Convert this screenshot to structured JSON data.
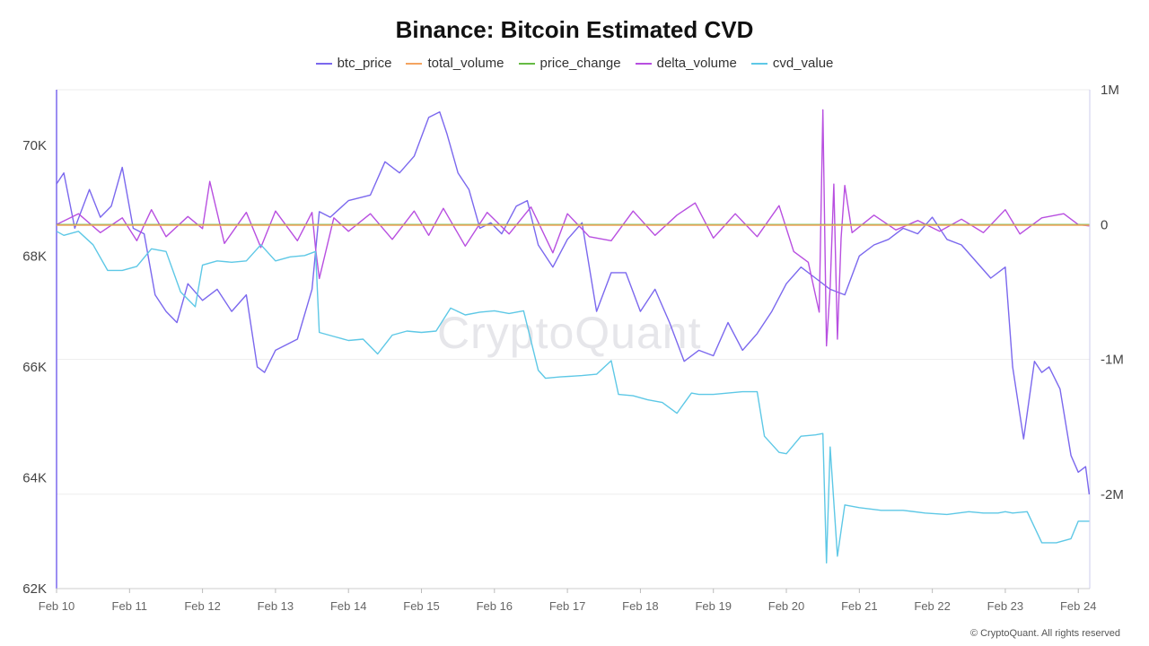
{
  "chart_data": {
    "type": "line",
    "title": "Binance: Bitcoin Estimated CVD",
    "legend": [
      {
        "name": "btc_price",
        "color": "#7b68ee"
      },
      {
        "name": "total_volume",
        "color": "#f4a460"
      },
      {
        "name": "price_change",
        "color": "#66bb44"
      },
      {
        "name": "delta_volume",
        "color": "#b84fe0"
      },
      {
        "name": "cvd_value",
        "color": "#5ec8e6"
      }
    ],
    "x_ticks": [
      "Feb 10",
      "Feb 11",
      "Feb 12",
      "Feb 13",
      "Feb 14",
      "Feb 15",
      "Feb 16",
      "Feb 17",
      "Feb 18",
      "Feb 19",
      "Feb 20",
      "Feb 21",
      "Feb 22",
      "Feb 23",
      "Feb 24"
    ],
    "y_left": {
      "ticks": [
        "70K",
        "68K",
        "66K",
        "64K",
        "62K"
      ],
      "values": [
        70000,
        68000,
        66000,
        64000,
        62000
      ],
      "ylim": [
        62000,
        71000
      ]
    },
    "y_right": {
      "ticks": [
        "1M",
        "0",
        "-1M",
        "-2M"
      ],
      "values": [
        1000000,
        0,
        -1000000,
        -2000000
      ],
      "ylim": [
        -2700000,
        1000000
      ]
    },
    "series": [
      {
        "name": "btc_price",
        "axis": "left",
        "x": [
          10,
          10.1,
          10.25,
          10.45,
          10.6,
          10.75,
          10.9,
          11.05,
          11.2,
          11.35,
          11.5,
          11.65,
          11.8,
          12.0,
          12.2,
          12.4,
          12.6,
          12.75,
          12.85,
          13.0,
          13.3,
          13.5,
          13.6,
          13.75,
          14.0,
          14.3,
          14.5,
          14.7,
          14.9,
          15.1,
          15.25,
          15.35,
          15.5,
          15.65,
          15.8,
          15.95,
          16.1,
          16.3,
          16.45,
          16.6,
          16.8,
          17.0,
          17.2,
          17.4,
          17.6,
          17.8,
          18.0,
          18.2,
          18.4,
          18.6,
          18.8,
          19.0,
          19.2,
          19.4,
          19.6,
          19.8,
          20.0,
          20.2,
          20.4,
          20.6,
          20.8,
          21.0,
          21.2,
          21.4,
          21.6,
          21.8,
          22.0,
          22.2,
          22.4,
          22.6,
          22.8,
          23.0,
          23.1,
          23.25,
          23.4,
          23.5,
          23.6,
          23.75,
          23.9,
          24.0,
          24.1,
          24.15
        ],
        "values": [
          69300,
          69500,
          68500,
          69200,
          68700,
          68900,
          69600,
          68500,
          68400,
          67300,
          67000,
          66800,
          67500,
          67200,
          67400,
          67000,
          67300,
          66000,
          65900,
          66300,
          66500,
          67400,
          68800,
          68700,
          69000,
          69100,
          69700,
          69500,
          69800,
          70500,
          70600,
          70200,
          69500,
          69200,
          68500,
          68600,
          68400,
          68900,
          69000,
          68200,
          67800,
          68300,
          68600,
          67000,
          67700,
          67700,
          67000,
          67400,
          66800,
          66100,
          66300,
          66200,
          66800,
          66300,
          66600,
          67000,
          67500,
          67800,
          67600,
          67400,
          67300,
          68000,
          68200,
          68300,
          68500,
          68400,
          68700,
          68300,
          68200,
          67900,
          67600,
          67800,
          66000,
          64700,
          66100,
          65900,
          66000,
          65600,
          64400,
          64100,
          64200,
          63700
        ]
      },
      {
        "name": "delta_volume",
        "axis": "right",
        "x": [
          10,
          10.3,
          10.6,
          10.9,
          11.1,
          11.3,
          11.5,
          11.8,
          12.0,
          12.1,
          12.3,
          12.6,
          12.8,
          13.0,
          13.3,
          13.5,
          13.55,
          13.6,
          13.8,
          14.0,
          14.3,
          14.6,
          14.9,
          15.1,
          15.3,
          15.6,
          15.9,
          16.2,
          16.5,
          16.8,
          17.0,
          17.3,
          17.6,
          17.9,
          18.2,
          18.5,
          18.75,
          19.0,
          19.3,
          19.6,
          19.9,
          20.1,
          20.3,
          20.45,
          20.5,
          20.55,
          20.6,
          20.65,
          20.7,
          20.75,
          20.8,
          20.9,
          21.2,
          21.5,
          21.8,
          22.1,
          22.4,
          22.7,
          23.0,
          23.2,
          23.5,
          23.8,
          24.0,
          24.15
        ],
        "values": [
          0,
          80000,
          -60000,
          50000,
          -120000,
          110000,
          -90000,
          60000,
          -30000,
          320000,
          -140000,
          90000,
          -170000,
          100000,
          -120000,
          90000,
          -180000,
          -400000,
          50000,
          -50000,
          80000,
          -110000,
          100000,
          -80000,
          120000,
          -160000,
          90000,
          -70000,
          130000,
          -210000,
          80000,
          -90000,
          -120000,
          100000,
          -80000,
          70000,
          160000,
          -100000,
          80000,
          -90000,
          140000,
          -200000,
          -280000,
          -650000,
          850000,
          -900000,
          -470000,
          300000,
          -850000,
          -100000,
          290000,
          -60000,
          70000,
          -40000,
          30000,
          -50000,
          40000,
          -60000,
          110000,
          -70000,
          50000,
          80000,
          0,
          -10000
        ]
      },
      {
        "name": "cvd_value",
        "axis": "right",
        "x": [
          10,
          10.1,
          10.3,
          10.5,
          10.7,
          10.9,
          11.1,
          11.3,
          11.5,
          11.7,
          11.9,
          12.0,
          12.2,
          12.4,
          12.6,
          12.8,
          13.0,
          13.2,
          13.4,
          13.55,
          13.6,
          13.8,
          14.0,
          14.2,
          14.4,
          14.6,
          14.8,
          15.0,
          15.2,
          15.4,
          15.6,
          15.8,
          16.0,
          16.2,
          16.4,
          16.6,
          16.7,
          16.9,
          17.2,
          17.4,
          17.6,
          17.7,
          17.9,
          18.1,
          18.3,
          18.5,
          18.7,
          18.8,
          19.0,
          19.2,
          19.4,
          19.6,
          19.7,
          19.9,
          20.0,
          20.2,
          20.4,
          20.5,
          20.55,
          20.6,
          20.7,
          20.8,
          21.0,
          21.3,
          21.6,
          21.9,
          22.2,
          22.5,
          22.7,
          22.9,
          23.0,
          23.1,
          23.3,
          23.5,
          23.7,
          23.9,
          24.0,
          24.15
        ],
        "values": [
          -50000,
          -80000,
          -50000,
          -150000,
          -340000,
          -340000,
          -310000,
          -180000,
          -200000,
          -500000,
          -610000,
          -300000,
          -270000,
          -280000,
          -270000,
          -150000,
          -270000,
          -240000,
          -230000,
          -200000,
          -800000,
          -830000,
          -860000,
          -850000,
          -960000,
          -820000,
          -790000,
          -800000,
          -790000,
          -620000,
          -670000,
          -650000,
          -640000,
          -660000,
          -640000,
          -1080000,
          -1140000,
          -1130000,
          -1120000,
          -1110000,
          -1010000,
          -1260000,
          -1270000,
          -1300000,
          -1320000,
          -1400000,
          -1250000,
          -1260000,
          -1260000,
          -1250000,
          -1240000,
          -1240000,
          -1570000,
          -1690000,
          -1700000,
          -1570000,
          -1560000,
          -1550000,
          -2510000,
          -1650000,
          -2460000,
          -2080000,
          -2100000,
          -2120000,
          -2120000,
          -2140000,
          -2150000,
          -2130000,
          -2140000,
          -2140000,
          -2130000,
          -2140000,
          -2130000,
          -2360000,
          -2360000,
          -2330000,
          -2200000,
          -2200000
        ]
      },
      {
        "name": "price_change",
        "axis": "right",
        "x": [
          10,
          24.15
        ],
        "values": [
          0,
          0
        ]
      },
      {
        "name": "total_volume",
        "axis": "right",
        "x": [
          10,
          24.15
        ],
        "values": [
          -5000,
          -5000
        ]
      }
    ],
    "watermark": "CryptoQuant",
    "footer": "© CryptoQuant. All rights reserved"
  }
}
